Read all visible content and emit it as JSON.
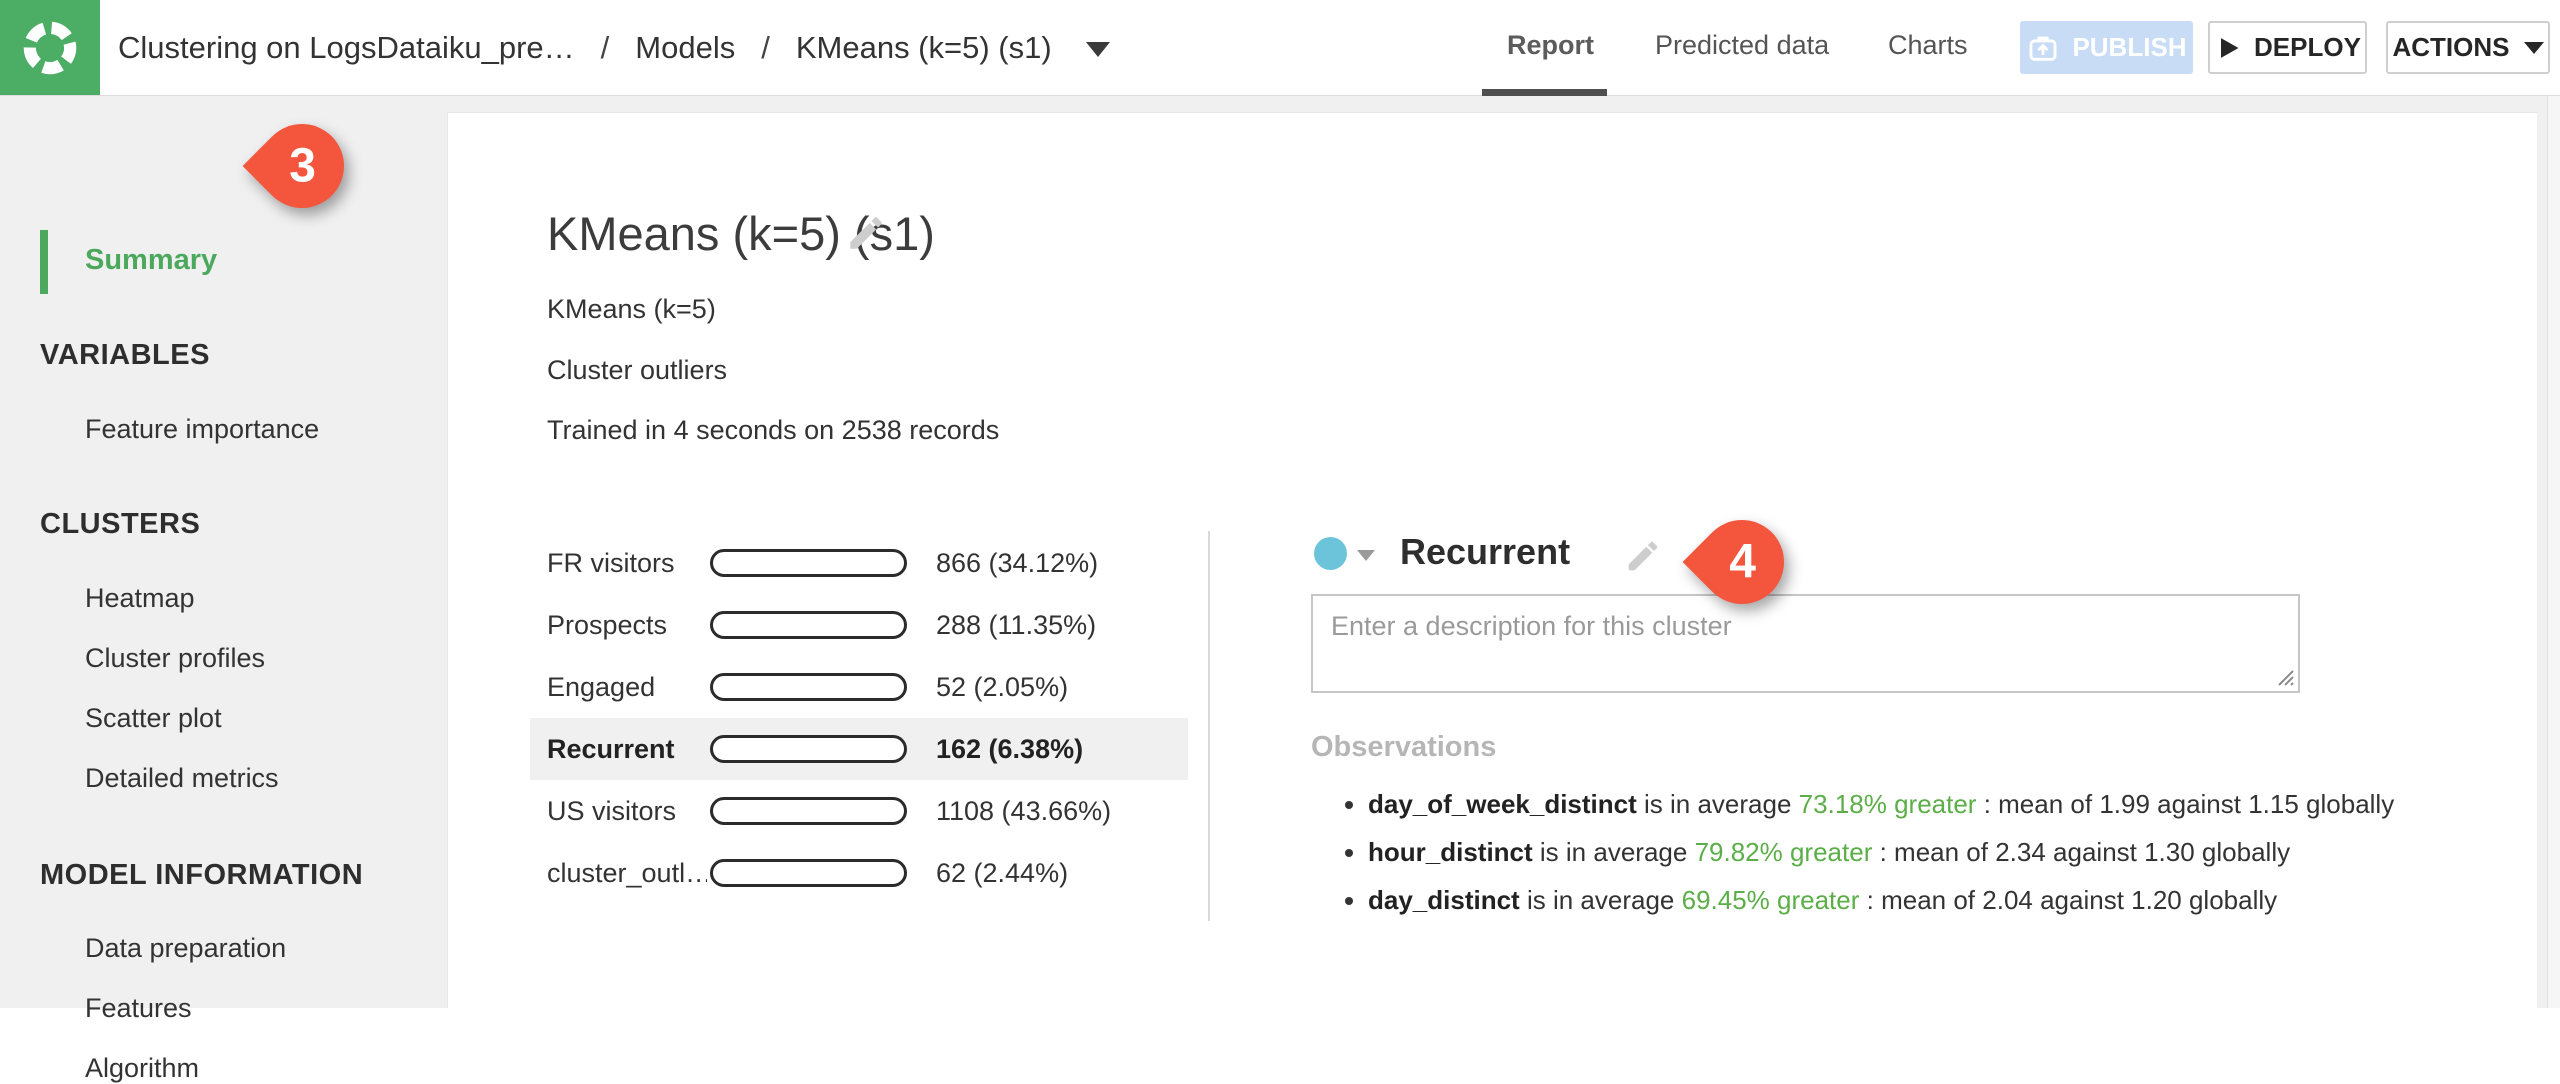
{
  "header": {
    "breadcrumb": {
      "project": "Clustering on LogsDataiku_pre…",
      "separator": "/",
      "section": "Models",
      "model": "KMeans (k=5) (s1)"
    },
    "tabs": [
      {
        "label": "Report",
        "active": true
      },
      {
        "label": "Predicted data",
        "active": false
      },
      {
        "label": "Charts",
        "active": false
      }
    ],
    "publish_label": "PUBLISH",
    "deploy_label": "DEPLOY",
    "actions_label": "ACTIONS"
  },
  "sidebar": {
    "active_item": "Summary",
    "sections": [
      {
        "title": "VARIABLES",
        "items": [
          "Feature importance"
        ]
      },
      {
        "title": "CLUSTERS",
        "items": [
          "Heatmap",
          "Cluster profiles",
          "Scatter plot",
          "Detailed metrics"
        ]
      },
      {
        "title": "MODEL INFORMATION",
        "items": [
          "Data preparation",
          "Features",
          "Algorithm"
        ]
      }
    ]
  },
  "annotations": {
    "step3": "3",
    "step4": "4",
    "color": "#f4553d"
  },
  "model": {
    "title": "KMeans (k=5) (s1)",
    "algorithm": "KMeans (k=5)",
    "outliers": "Cluster outliers",
    "training_info": "Trained in 4 seconds on 2538 records"
  },
  "clusters": {
    "rows": [
      {
        "name": "FR visitors",
        "value": "866 (34.12%)",
        "percent": 34.12,
        "color": "#d9704f",
        "selected": false
      },
      {
        "name": "Prospects",
        "value": "288 (11.35%)",
        "percent": 11.35,
        "color": "#f0c469",
        "selected": false
      },
      {
        "name": "Engaged",
        "value": "52 (2.05%)",
        "percent": 2.05,
        "color": "#a9d6ac",
        "selected": false
      },
      {
        "name": "Recurrent",
        "value": "162 (6.38%)",
        "percent": 6.38,
        "color": "#6bc4d9",
        "selected": true
      },
      {
        "name": "US visitors",
        "value": "1108 (43.66%)",
        "percent": 43.66,
        "color": "#6d93cb",
        "selected": false
      },
      {
        "name": "cluster_outl…",
        "value": "62 (2.44%)",
        "percent": 2.44,
        "color": "#a87fa8",
        "selected": false
      }
    ]
  },
  "cluster_detail": {
    "name": "Recurrent",
    "color": "#6bc4d9",
    "description_placeholder": "Enter a description for this cluster",
    "observations_title": "Observations",
    "observations": [
      {
        "feature": "day_of_week_distinct",
        "connector": "is in average",
        "highlight": "73.18% greater",
        "rest": ": mean of 1.99 against 1.15 globally"
      },
      {
        "feature": "hour_distinct",
        "connector": "is in average",
        "highlight": "79.82% greater",
        "rest": ": mean of 2.34 against 1.30 globally"
      },
      {
        "feature": "day_distinct",
        "connector": "is in average",
        "highlight": "69.45% greater",
        "rest": ": mean of 2.04 against 1.20 globally"
      }
    ]
  }
}
